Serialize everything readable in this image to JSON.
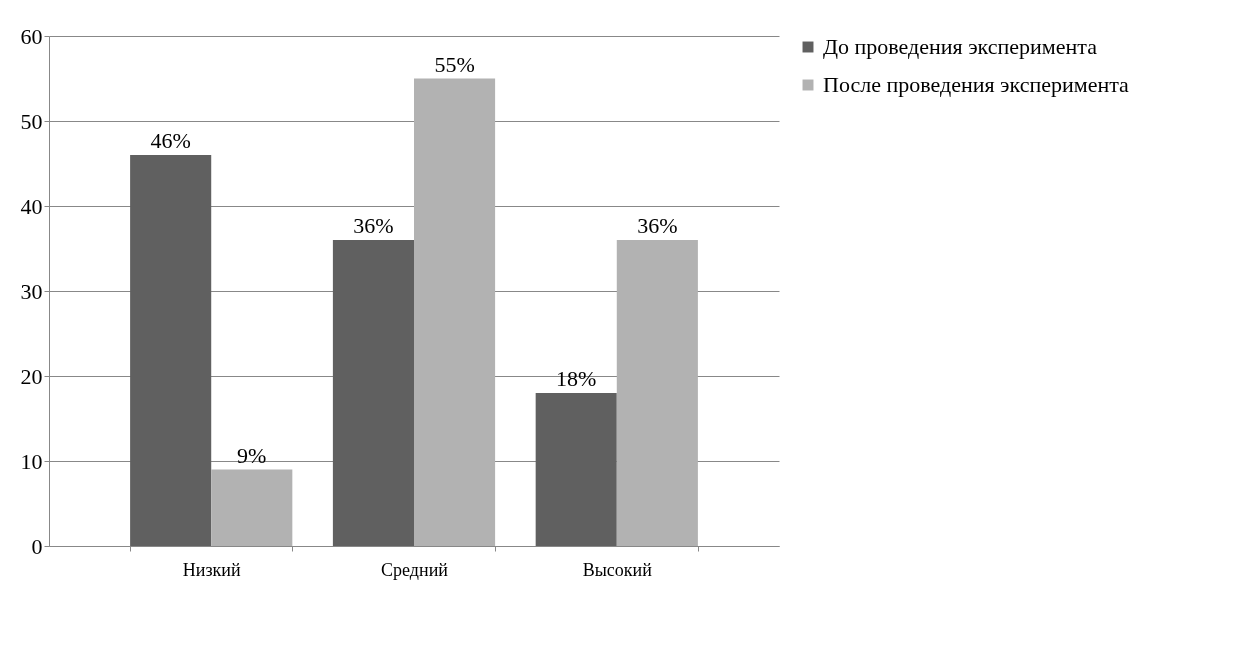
{
  "chart_data": {
    "type": "bar",
    "categories": [
      "Низкий",
      "Средний",
      "Высокий"
    ],
    "series": [
      {
        "name": "До проведения эксперимента",
        "color": "#606060",
        "values": [
          46,
          36,
          18
        ],
        "value_labels": [
          "46%",
          "36%",
          "18%"
        ]
      },
      {
        "name": "После проведения эксперимента",
        "color": "#b2b2b2",
        "values": [
          9,
          55,
          36
        ],
        "value_labels": [
          "9%",
          "55%",
          "36%"
        ]
      }
    ],
    "ylim": [
      0,
      60
    ],
    "yticks": [
      0,
      10,
      20,
      30,
      40,
      50,
      60
    ],
    "grid": "y",
    "legend": "right"
  }
}
